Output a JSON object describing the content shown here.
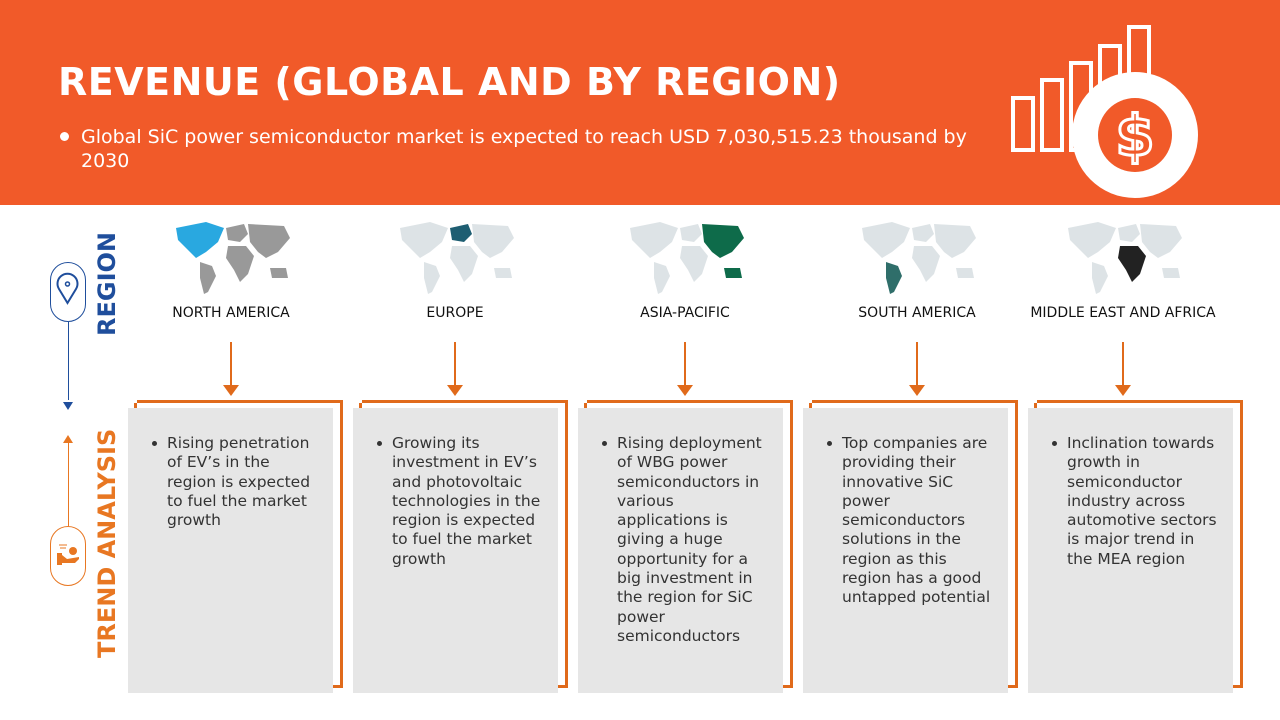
{
  "header": {
    "title": "REVENUE (GLOBAL AND BY REGION)",
    "subtitle": "Global SiC power semiconductor market is expected to reach USD 7,030,515.23 thousand by 2030",
    "icon": "revenue-chart-dollar-icon"
  },
  "axis": {
    "region_label": "REGION",
    "trend_label": "TREND ANALYSIS",
    "region_color": "#1F4E9C",
    "trend_color": "#E87722"
  },
  "colors": {
    "header": "#F15A29",
    "accent": "#E06A1B",
    "card": "#E6E6E6"
  },
  "regions": [
    {
      "name": "NORTH AMERICA",
      "highlight": "na",
      "color": "#29A8E0",
      "trend": "Rising penetration of EV’s in the region is expected to fuel the market growth"
    },
    {
      "name": "EUROPE",
      "highlight": "eu",
      "color": "#1E5E72",
      "trend": "Growing its investment in EV’s and photovoltaic technologies in the region is expected to fuel the market growth"
    },
    {
      "name": "ASIA-PACIFIC",
      "highlight": "ap",
      "color": "#0E6B4A",
      "trend": "Rising deployment of WBG power semiconductors in various applications is giving a huge opportunity for a big investment in the region for SiC power semiconductors"
    },
    {
      "name": "SOUTH AMERICA",
      "highlight": "sa",
      "color": "#2F6E6A",
      "trend": "Top companies are providing their innovative SiC power semiconductors solutions in the region as this region has a good untapped potential"
    },
    {
      "name": "MIDDLE EAST AND AFRICA",
      "highlight": "mea",
      "color": "#222222",
      "trend": "Inclination towards growth in semiconductor industry across automotive sectors is major trend in the MEA region"
    }
  ]
}
